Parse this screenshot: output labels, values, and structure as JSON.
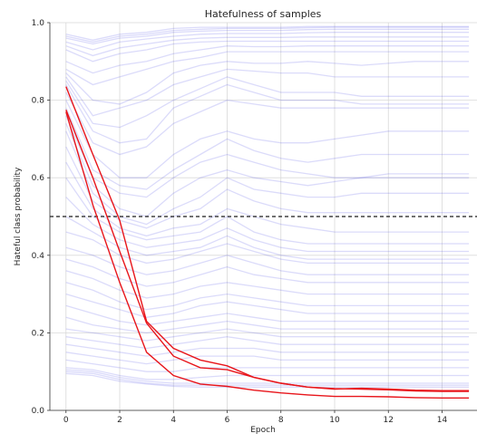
{
  "chart_data": {
    "type": "line",
    "title": "Hatefulness of samples",
    "xlabel": "Epoch",
    "ylabel": "Hateful class probability",
    "xlim": [
      -0.6,
      15.3
    ],
    "ylim": [
      0,
      1.0
    ],
    "x_ticks": [
      "0",
      "2",
      "4",
      "6",
      "8",
      "10",
      "12",
      "14"
    ],
    "y_ticks": [
      "0.0",
      "0.2",
      "0.4",
      "0.6",
      "0.8",
      "1.0"
    ],
    "grid": true,
    "threshold": 0.5,
    "threshold_style": "dashed black",
    "colors": {
      "blue_series": "#4a4ae8",
      "red_series": "#e8151b",
      "threshold": "#1a1a1a",
      "grid": "#d9d9d9"
    },
    "x": [
      0,
      1,
      2,
      3,
      4,
      5,
      6,
      7,
      8,
      9,
      10,
      11,
      12,
      13,
      14,
      15
    ],
    "blue_series": [
      [
        0.97,
        0.955,
        0.97,
        0.975,
        0.985,
        0.988,
        0.988,
        0.988,
        0.988,
        0.99,
        0.99,
        0.99,
        0.99,
        0.99,
        0.99,
        0.99
      ],
      [
        0.965,
        0.95,
        0.965,
        0.97,
        0.98,
        0.983,
        0.985,
        0.985,
        0.985,
        0.987,
        0.988,
        0.988,
        0.988,
        0.988,
        0.988,
        0.988
      ],
      [
        0.96,
        0.945,
        0.96,
        0.965,
        0.975,
        0.978,
        0.98,
        0.98,
        0.98,
        0.982,
        0.983,
        0.983,
        0.983,
        0.983,
        0.983,
        0.983
      ],
      [
        0.95,
        0.93,
        0.95,
        0.958,
        0.965,
        0.97,
        0.972,
        0.972,
        0.972,
        0.974,
        0.975,
        0.975,
        0.975,
        0.975,
        0.975,
        0.975
      ],
      [
        0.94,
        0.915,
        0.935,
        0.945,
        0.955,
        0.96,
        0.962,
        0.962,
        0.962,
        0.963,
        0.963,
        0.963,
        0.963,
        0.963,
        0.963,
        0.963
      ],
      [
        0.93,
        0.9,
        0.92,
        0.93,
        0.945,
        0.95,
        0.952,
        0.952,
        0.952,
        0.952,
        0.952,
        0.952,
        0.952,
        0.952,
        0.952,
        0.952
      ],
      [
        0.9,
        0.87,
        0.89,
        0.9,
        0.92,
        0.93,
        0.94,
        0.938,
        0.938,
        0.94,
        0.94,
        0.94,
        0.94,
        0.94,
        0.94,
        0.94
      ],
      [
        0.88,
        0.84,
        0.86,
        0.88,
        0.9,
        0.91,
        0.925,
        0.925,
        0.925,
        0.925,
        0.925,
        0.925,
        0.925,
        0.925,
        0.925,
        0.925
      ],
      [
        0.87,
        0.8,
        0.79,
        0.82,
        0.87,
        0.89,
        0.9,
        0.895,
        0.895,
        0.9,
        0.895,
        0.89,
        0.895,
        0.9,
        0.9,
        0.9
      ],
      [
        0.86,
        0.76,
        0.78,
        0.8,
        0.84,
        0.86,
        0.88,
        0.875,
        0.87,
        0.87,
        0.86,
        0.86,
        0.86,
        0.86,
        0.86,
        0.86
      ],
      [
        0.85,
        0.74,
        0.73,
        0.76,
        0.8,
        0.83,
        0.86,
        0.84,
        0.82,
        0.82,
        0.82,
        0.81,
        0.81,
        0.81,
        0.81,
        0.81
      ],
      [
        0.84,
        0.72,
        0.69,
        0.7,
        0.78,
        0.81,
        0.84,
        0.82,
        0.8,
        0.8,
        0.8,
        0.79,
        0.79,
        0.79,
        0.79,
        0.79
      ],
      [
        0.82,
        0.69,
        0.66,
        0.68,
        0.74,
        0.77,
        0.8,
        0.79,
        0.78,
        0.78,
        0.78,
        0.78,
        0.78,
        0.78,
        0.78,
        0.78
      ],
      [
        0.8,
        0.66,
        0.6,
        0.6,
        0.66,
        0.7,
        0.72,
        0.7,
        0.69,
        0.69,
        0.7,
        0.71,
        0.72,
        0.72,
        0.72,
        0.72
      ],
      [
        0.78,
        0.62,
        0.58,
        0.57,
        0.62,
        0.66,
        0.7,
        0.67,
        0.65,
        0.64,
        0.65,
        0.66,
        0.66,
        0.66,
        0.66,
        0.66
      ],
      [
        0.76,
        0.6,
        0.56,
        0.55,
        0.6,
        0.64,
        0.66,
        0.64,
        0.62,
        0.61,
        0.6,
        0.6,
        0.61,
        0.61,
        0.61,
        0.61
      ],
      [
        0.74,
        0.58,
        0.52,
        0.5,
        0.56,
        0.6,
        0.62,
        0.6,
        0.59,
        0.58,
        0.59,
        0.6,
        0.6,
        0.6,
        0.6,
        0.6
      ],
      [
        0.72,
        0.56,
        0.5,
        0.48,
        0.52,
        0.55,
        0.6,
        0.57,
        0.56,
        0.55,
        0.55,
        0.56,
        0.56,
        0.56,
        0.56,
        0.56
      ],
      [
        0.68,
        0.54,
        0.49,
        0.47,
        0.5,
        0.52,
        0.57,
        0.54,
        0.52,
        0.51,
        0.51,
        0.51,
        0.51,
        0.51,
        0.51,
        0.51
      ],
      [
        0.64,
        0.52,
        0.47,
        0.45,
        0.47,
        0.48,
        0.52,
        0.5,
        0.48,
        0.47,
        0.46,
        0.46,
        0.46,
        0.46,
        0.46,
        0.46
      ],
      [
        0.6,
        0.5,
        0.46,
        0.44,
        0.45,
        0.46,
        0.5,
        0.46,
        0.44,
        0.43,
        0.43,
        0.43,
        0.43,
        0.43,
        0.43,
        0.43
      ],
      [
        0.55,
        0.48,
        0.44,
        0.42,
        0.43,
        0.44,
        0.47,
        0.44,
        0.42,
        0.41,
        0.41,
        0.41,
        0.41,
        0.41,
        0.41,
        0.41
      ],
      [
        0.5,
        0.46,
        0.42,
        0.4,
        0.41,
        0.42,
        0.45,
        0.42,
        0.4,
        0.39,
        0.39,
        0.39,
        0.39,
        0.39,
        0.39,
        0.39
      ],
      [
        0.46,
        0.44,
        0.4,
        0.38,
        0.39,
        0.41,
        0.43,
        0.41,
        0.39,
        0.38,
        0.38,
        0.38,
        0.38,
        0.38,
        0.38,
        0.38
      ],
      [
        0.42,
        0.4,
        0.37,
        0.35,
        0.36,
        0.38,
        0.4,
        0.38,
        0.36,
        0.35,
        0.35,
        0.35,
        0.35,
        0.35,
        0.35,
        0.35
      ],
      [
        0.39,
        0.37,
        0.34,
        0.32,
        0.33,
        0.35,
        0.37,
        0.35,
        0.34,
        0.33,
        0.33,
        0.33,
        0.33,
        0.33,
        0.33,
        0.33
      ],
      [
        0.36,
        0.34,
        0.31,
        0.29,
        0.3,
        0.32,
        0.33,
        0.32,
        0.31,
        0.3,
        0.3,
        0.3,
        0.3,
        0.3,
        0.3,
        0.3
      ],
      [
        0.33,
        0.31,
        0.28,
        0.26,
        0.27,
        0.29,
        0.3,
        0.29,
        0.28,
        0.27,
        0.27,
        0.27,
        0.27,
        0.27,
        0.27,
        0.27
      ],
      [
        0.3,
        0.28,
        0.26,
        0.24,
        0.25,
        0.27,
        0.28,
        0.27,
        0.26,
        0.25,
        0.25,
        0.25,
        0.25,
        0.25,
        0.25,
        0.25
      ],
      [
        0.27,
        0.25,
        0.23,
        0.22,
        0.23,
        0.24,
        0.25,
        0.24,
        0.23,
        0.23,
        0.23,
        0.23,
        0.23,
        0.23,
        0.23,
        0.23
      ],
      [
        0.24,
        0.22,
        0.21,
        0.2,
        0.21,
        0.22,
        0.23,
        0.22,
        0.21,
        0.21,
        0.21,
        0.21,
        0.21,
        0.21,
        0.21,
        0.21
      ],
      [
        0.21,
        0.2,
        0.19,
        0.18,
        0.19,
        0.2,
        0.21,
        0.2,
        0.19,
        0.19,
        0.19,
        0.19,
        0.19,
        0.19,
        0.19,
        0.19
      ],
      [
        0.19,
        0.18,
        0.17,
        0.16,
        0.17,
        0.18,
        0.19,
        0.18,
        0.17,
        0.17,
        0.17,
        0.17,
        0.17,
        0.17,
        0.17,
        0.17
      ],
      [
        0.17,
        0.16,
        0.15,
        0.14,
        0.15,
        0.16,
        0.16,
        0.16,
        0.15,
        0.15,
        0.15,
        0.15,
        0.15,
        0.15,
        0.15,
        0.15
      ],
      [
        0.15,
        0.14,
        0.13,
        0.12,
        0.13,
        0.14,
        0.14,
        0.14,
        0.13,
        0.13,
        0.13,
        0.13,
        0.13,
        0.13,
        0.13,
        0.13
      ],
      [
        0.13,
        0.12,
        0.11,
        0.1,
        0.1,
        0.11,
        0.11,
        0.11,
        0.11,
        0.11,
        0.11,
        0.11,
        0.11,
        0.11,
        0.11,
        0.11
      ],
      [
        0.11,
        0.105,
        0.09,
        0.08,
        0.08,
        0.085,
        0.09,
        0.09,
        0.09,
        0.09,
        0.09,
        0.09,
        0.09,
        0.09,
        0.09,
        0.09
      ],
      [
        0.105,
        0.1,
        0.085,
        0.075,
        0.07,
        0.07,
        0.07,
        0.07,
        0.07,
        0.07,
        0.07,
        0.07,
        0.07,
        0.07,
        0.07,
        0.07
      ],
      [
        0.1,
        0.095,
        0.08,
        0.07,
        0.065,
        0.065,
        0.065,
        0.065,
        0.065,
        0.065,
        0.065,
        0.065,
        0.065,
        0.065,
        0.065,
        0.065
      ],
      [
        0.095,
        0.09,
        0.075,
        0.068,
        0.062,
        0.06,
        0.06,
        0.06,
        0.06,
        0.06,
        0.06,
        0.06,
        0.06,
        0.06,
        0.06,
        0.06
      ]
    ],
    "red_series": [
      [
        0.835,
        0.66,
        0.49,
        0.23,
        0.16,
        0.13,
        0.115,
        0.085,
        0.07,
        0.06,
        0.055,
        0.057,
        0.055,
        0.052,
        0.051,
        0.051
      ],
      [
        0.775,
        0.6,
        0.41,
        0.225,
        0.14,
        0.11,
        0.105,
        0.085,
        0.07,
        0.06,
        0.056,
        0.055,
        0.053,
        0.05,
        0.049,
        0.049
      ],
      [
        0.77,
        0.53,
        0.33,
        0.15,
        0.09,
        0.068,
        0.062,
        0.052,
        0.045,
        0.04,
        0.036,
        0.036,
        0.035,
        0.033,
        0.032,
        0.032
      ]
    ]
  }
}
